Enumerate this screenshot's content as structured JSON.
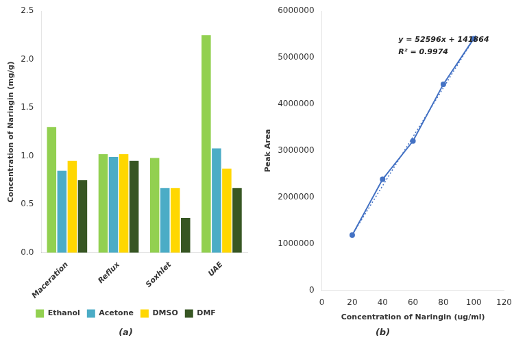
{
  "chart_data": [
    {
      "type": "bar",
      "title": "(a)",
      "categories": [
        "Maceration",
        "Reflux",
        "Soxhlet",
        "UAE"
      ],
      "series": [
        {
          "name": "Ethanol",
          "color": "#92D050",
          "values": [
            1.3,
            1.02,
            0.98,
            2.25
          ]
        },
        {
          "name": "Acetone",
          "color": "#4BACC6",
          "values": [
            0.85,
            0.99,
            0.67,
            1.08
          ]
        },
        {
          "name": "DMSO",
          "color": "#FFD700",
          "values": [
            0.95,
            1.02,
            0.67,
            0.87
          ]
        },
        {
          "name": "DMF",
          "color": "#375623",
          "values": [
            0.75,
            0.95,
            0.36,
            0.67
          ]
        }
      ],
      "ylabel": "Concentration of Naringin (mg/g)",
      "ylim": [
        0,
        2.5
      ],
      "yticks": [
        {
          "value": 0,
          "label": "0.0"
        },
        0.5,
        {
          "value": 1.0,
          "label": "1.0"
        },
        1.5,
        {
          "value": 2.0,
          "label": "2.0"
        },
        2.5
      ],
      "legend": "bottom",
      "grid": false
    },
    {
      "type": "scatter",
      "title": "(b)",
      "xlabel": "Concentration of Naringin (ug/ml)",
      "ylabel": "Peak Area",
      "xlim": [
        0,
        120
      ],
      "xticks": [
        0,
        20,
        40,
        60,
        80,
        100,
        120
      ],
      "ylim": [
        0,
        6000000
      ],
      "yticks": [
        0,
        1000000,
        2000000,
        3000000,
        4000000,
        5000000,
        6000000
      ],
      "annotations": [
        "y = 52596x + 141864",
        "R² = 0.9974"
      ],
      "grid": false,
      "series": [
        {
          "type": "line",
          "marker": "circle",
          "line_style": "solid",
          "color": "#4472C4",
          "x": [
            20,
            40,
            60,
            80,
            100
          ],
          "values": [
            1187984,
            2387064,
            3207608,
            4427304,
            5405864
          ]
        },
        {
          "type": "line",
          "marker": "none",
          "line_style": "dotted",
          "color": "#4472C4",
          "x": [
            20,
            102
          ],
          "values": [
            1193784,
            5506656
          ]
        }
      ]
    }
  ]
}
